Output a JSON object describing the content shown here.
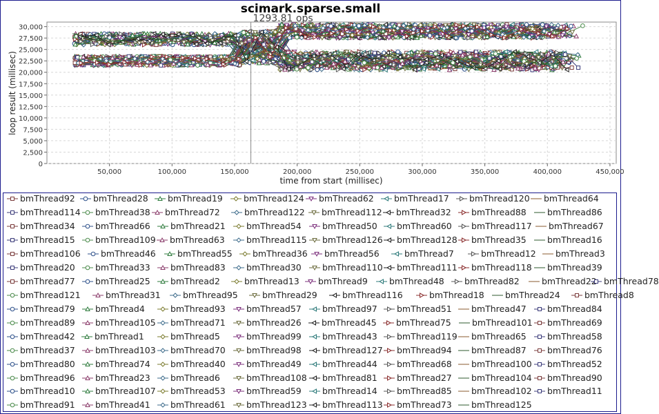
{
  "chart_data": {
    "type": "line",
    "title": "scimark.sparse.small",
    "annotation": "1293.81 ops",
    "annotation_x": 163000,
    "xlabel": "time from start (millisec)",
    "ylabel": "loop result (millisec)",
    "xlim": [
      0,
      455000
    ],
    "ylim": [
      0,
      31000
    ],
    "xticks": [
      50000,
      100000,
      150000,
      200000,
      250000,
      300000,
      350000,
      400000,
      450000
    ],
    "xtick_labels": [
      "50,000",
      "100,000",
      "150,000",
      "200,000",
      "250,000",
      "300,000",
      "350,000",
      "400,000",
      "450,000"
    ],
    "yticks": [
      0,
      2500,
      5000,
      7500,
      10000,
      12500,
      15000,
      17500,
      20000,
      22500,
      25000,
      27500,
      30000
    ],
    "ytick_labels": [
      "0",
      "2,500",
      "5,000",
      "7,500",
      "10,000",
      "12,500",
      "15,000",
      "17,500",
      "20,000",
      "22,500",
      "25,000",
      "27,500",
      "30,000"
    ],
    "grid": true,
    "legend_position": "bottom",
    "series_names": [
      [
        "bmThread92",
        "bmThread28",
        "bmThread19",
        "bmThread124",
        "bmThread62",
        "bmThread17",
        "bmThread120",
        "bmThread64"
      ],
      [
        "bmThread114",
        "bmThread38",
        "bmThread72",
        "bmThread122",
        "bmThread112",
        "bmThread32",
        "bmThread88",
        "bmThread86"
      ],
      [
        "bmThread34",
        "bmThread66",
        "bmThread21",
        "bmThread54",
        "bmThread50",
        "bmThread60",
        "bmThread117",
        "bmThread67"
      ],
      [
        "bmThread15",
        "bmThread109",
        "bmThread63",
        "bmThread115",
        "bmThread126",
        "bmThread128",
        "bmThread35",
        "bmThread16"
      ],
      [
        "bmThread106",
        "bmThread46",
        "bmThread55",
        "bmThread36",
        "bmThread56",
        "bmThread7",
        "bmThread12",
        "bmThread3"
      ],
      [
        "bmThread20",
        "bmThread33",
        "bmThread83",
        "bmThread30",
        "bmThread110",
        "bmThread111",
        "bmThread118",
        "bmThread39"
      ],
      [
        "bmThread77",
        "bmThread25",
        "bmThread2",
        "bmThread13",
        "bmThread9",
        "bmThread48",
        "bmThread82",
        "bmThread22",
        "bmThread78"
      ],
      [
        "bmThread121",
        "bmThread31",
        "bmThread95",
        "bmThread29",
        "bmThread116",
        "bmThread18",
        "bmThread24",
        "bmThread8"
      ],
      [
        "bmThread79",
        "bmThread4",
        "bmThread93",
        "bmThread57",
        "bmThread97",
        "bmThread51",
        "bmThread47",
        "bmThread84"
      ],
      [
        "bmThread89",
        "bmThread105",
        "bmThread71",
        "bmThread26",
        "bmThread45",
        "bmThread75",
        "bmThread101",
        "bmThread69"
      ],
      [
        "bmThread42",
        "bmThread1",
        "bmThread5",
        "bmThread99",
        "bmThread43",
        "bmThread119",
        "bmThread65",
        "bmThread58"
      ],
      [
        "bmThread37",
        "bmThread103",
        "bmThread70",
        "bmThread98",
        "bmThread127",
        "bmThread94",
        "bmThread87",
        "bmThread76"
      ],
      [
        "bmThread80",
        "bmThread74",
        "bmThread40",
        "bmThread49",
        "bmThread44",
        "bmThread68",
        "bmThread100",
        "bmThread52"
      ],
      [
        "bmThread96",
        "bmThread23",
        "bmThread6",
        "bmThread108",
        "bmThread81",
        "bmThread27",
        "bmThread104",
        "bmThread90"
      ],
      [
        "bmThread10",
        "bmThread107",
        "bmThread53",
        "bmThread59",
        "bmThread14",
        "bmThread85",
        "bmThread102",
        "bmThread11"
      ],
      [
        "bmThread91",
        "bmThread41",
        "bmThread61",
        "bmThread123",
        "bmThread113",
        "bmThread73",
        "bmThread125"
      ]
    ],
    "legend_item_x": [
      [
        8,
        114,
        222,
        332,
        441,
        550,
        659,
        767
      ],
      [
        8,
        117,
        218,
        333,
        445,
        553,
        662,
        772
      ],
      [
        8,
        117,
        226,
        336,
        446,
        554,
        662,
        774
      ],
      [
        8,
        117,
        225,
        336,
        446,
        554,
        662,
        772
      ],
      [
        8,
        125,
        236,
        345,
        449,
        565,
        676,
        784
      ],
      [
        8,
        117,
        226,
        336,
        446,
        554,
        662,
        772
      ],
      [
        8,
        117,
        226,
        333,
        440,
        543,
        652,
        764,
        854
      ],
      [
        8,
        132,
        244,
        359,
        475,
        601,
        711,
        826
      ],
      [
        8,
        117,
        226,
        336,
        446,
        554,
        662,
        772
      ],
      [
        8,
        117,
        226,
        336,
        445,
        553,
        663,
        772
      ],
      [
        8,
        116,
        226,
        336,
        446,
        554,
        662,
        772
      ],
      [
        8,
        117,
        226,
        336,
        446,
        554,
        662,
        772
      ],
      [
        8,
        117,
        226,
        336,
        446,
        554,
        662,
        772
      ],
      [
        8,
        117,
        226,
        336,
        446,
        554,
        662,
        772
      ],
      [
        8,
        117,
        226,
        336,
        446,
        554,
        662,
        772
      ],
      [
        8,
        117,
        226,
        336,
        446,
        554,
        662
      ]
    ],
    "legend_row_y": [
      287,
      307,
      327,
      347,
      367,
      387,
      407,
      427,
      447,
      467,
      487,
      507,
      527,
      547,
      566,
      586
    ]
  }
}
